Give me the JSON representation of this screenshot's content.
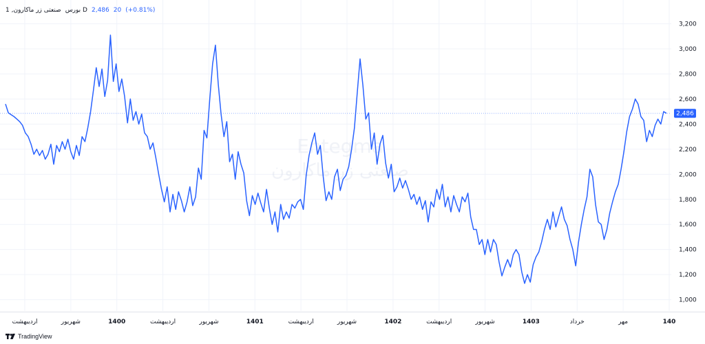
{
  "legend": {
    "symbol": "صنعتی زر ماکارون, 1",
    "exchange": "بورس D",
    "last": "2,486",
    "change": "20",
    "change_pct": "(+0.81%)"
  },
  "watermark": {
    "brand": "Entegma",
    "company": "صنعتی زر ماکارون"
  },
  "price_label": "2,486",
  "footer": {
    "brand": "TradingView"
  },
  "colors": {
    "line": "#2962ff",
    "price_label_bg": "#2962ff",
    "grid": "#f0f3fa",
    "axis_text": "#131722"
  },
  "chart_data": {
    "type": "line",
    "x_labels": [
      "اردیبهشت",
      "شهریور",
      "1400",
      "اردیبهشت",
      "شهریور",
      "1401",
      "اردیبهشت",
      "شهریور",
      "1402",
      "اردیبهشت",
      "شهریور",
      "1403",
      "خرداد",
      "مهر",
      "140"
    ],
    "y_ticks": [
      1000,
      1200,
      1400,
      1600,
      1800,
      2000,
      2200,
      2400,
      2600,
      2800,
      3000,
      3200
    ],
    "ylim": [
      910,
      3280
    ],
    "last_value": 2486,
    "series": [
      {
        "values": [
          2560,
          2490,
          2475,
          2460,
          2440,
          2420,
          2390,
          2330,
          2300,
          2240,
          2160,
          2200,
          2150,
          2190,
          2120,
          2160,
          2240,
          2080,
          2230,
          2180,
          2260,
          2200,
          2280,
          2180,
          2120,
          2230,
          2150,
          2300,
          2260,
          2370,
          2500,
          2670,
          2850,
          2700,
          2840,
          2620,
          2750,
          3110,
          2740,
          2880,
          2660,
          2760,
          2620,
          2410,
          2600,
          2430,
          2500,
          2400,
          2480,
          2330,
          2300,
          2200,
          2250,
          2130,
          2000,
          1880,
          1780,
          1900,
          1700,
          1840,
          1720,
          1860,
          1790,
          1700,
          1780,
          1900,
          1750,
          1820,
          2050,
          1960,
          2350,
          2290,
          2600,
          2880,
          3030,
          2720,
          2480,
          2300,
          2420,
          2100,
          2160,
          1960,
          2180,
          2080,
          2010,
          1790,
          1670,
          1830,
          1760,
          1850,
          1770,
          1700,
          1880,
          1730,
          1600,
          1700,
          1540,
          1760,
          1640,
          1700,
          1650,
          1760,
          1730,
          1780,
          1800,
          1720,
          1990,
          2150,
          2250,
          2330,
          2160,
          2230,
          1980,
          1790,
          1860,
          1800,
          1980,
          2040,
          1870,
          1960,
          1990,
          2060,
          2200,
          2370,
          2650,
          2920,
          2710,
          2440,
          2490,
          2200,
          2330,
          2080,
          2240,
          2310,
          2090,
          1970,
          2080,
          1860,
          1900,
          1970,
          1890,
          1950,
          1880,
          1800,
          1840,
          1760,
          1820,
          1720,
          1790,
          1620,
          1780,
          1740,
          1880,
          1800,
          1920,
          1740,
          1820,
          1700,
          1830,
          1760,
          1700,
          1820,
          1780,
          1850,
          1660,
          1560,
          1560,
          1440,
          1480,
          1360,
          1480,
          1380,
          1480,
          1440,
          1300,
          1190,
          1260,
          1320,
          1260,
          1360,
          1400,
          1360,
          1220,
          1130,
          1200,
          1140,
          1280,
          1340,
          1380,
          1460,
          1560,
          1640,
          1560,
          1700,
          1580,
          1660,
          1740,
          1640,
          1590,
          1480,
          1400,
          1270,
          1460,
          1600,
          1720,
          1820,
          2040,
          1980,
          1760,
          1620,
          1600,
          1480,
          1560,
          1690,
          1780,
          1860,
          1920,
          2040,
          2180,
          2340,
          2460,
          2520,
          2600,
          2560,
          2460,
          2430,
          2260,
          2350,
          2300,
          2390,
          2440,
          2400,
          2500,
          2486
        ]
      }
    ]
  }
}
